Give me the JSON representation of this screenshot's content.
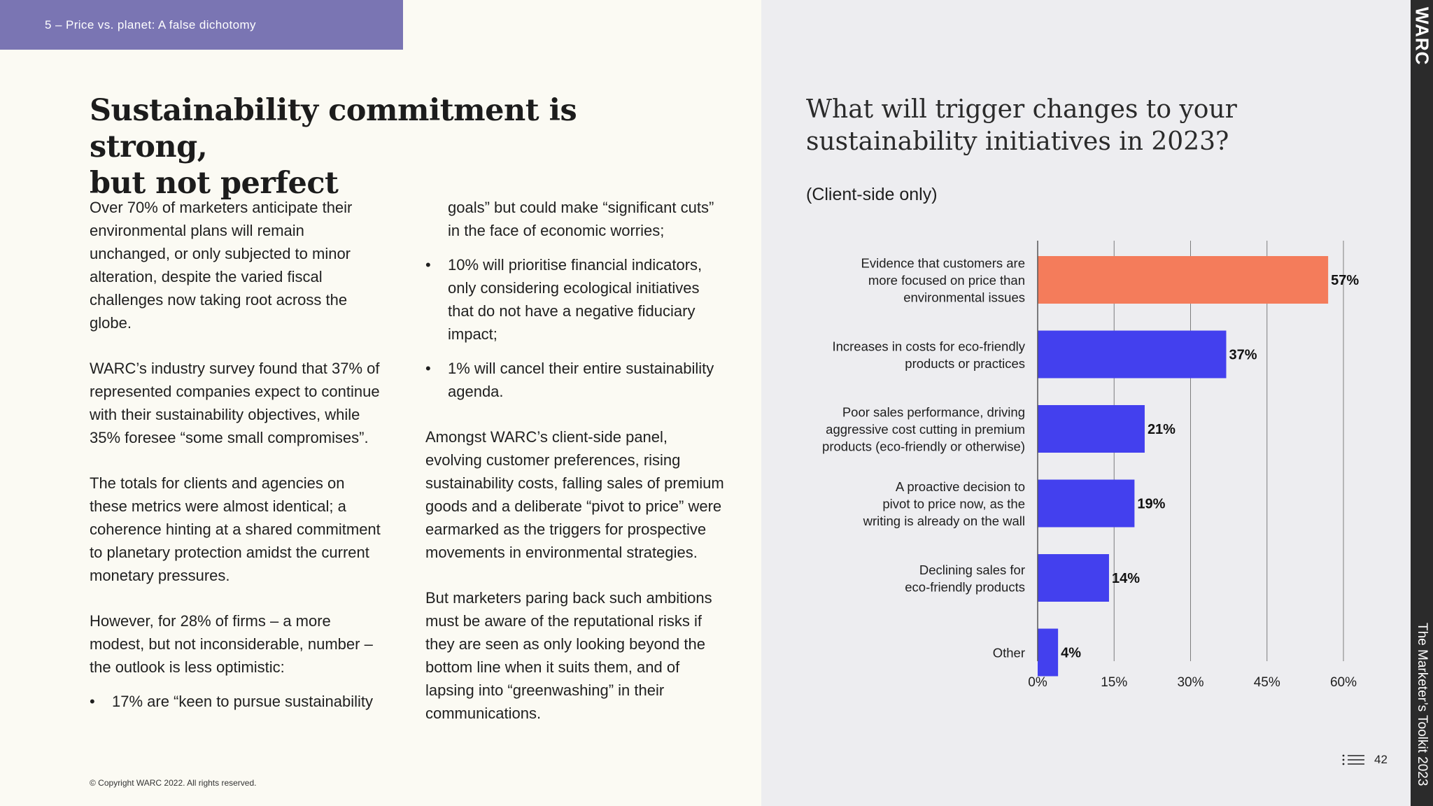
{
  "section_tab": "5 – Price vs. planet: A false dichotomy",
  "headline": {
    "line1": "Sustainability commitment is strong,",
    "line2": "but not perfect"
  },
  "body": {
    "col1_p1": "Over 70% of marketers anticipate their environmental plans will remain unchanged, or only subjected to minor alteration, despite the varied fiscal challenges now taking root across the globe.",
    "col1_p2": "WARC’s industry survey found that 37% of represented companies expect to continue with their sustainability objectives, while 35% foresee “some small compromises”.",
    "col1_p3": "The totals for clients and agencies on these metrics were almost identical; a coherence hinting at a shared commitment to planetary protection amidst the current monetary pressures.",
    "col1_p4": "However, for 28% of firms – a more modest, but not inconsiderable, number – the outlook is less optimistic:",
    "bullet_marker": "•",
    "bullet1_start": "17% are “keen to pursue sustainability",
    "bullet1_cont": "goals” but could make “significant cuts” in the face of economic worries;",
    "bullet2": "10% will prioritise financial indicators, only considering ecological initiatives that do not have a negative fiduciary impact;",
    "bullet3": "1% will cancel their entire sustainability agenda.",
    "col2_p1": "Amongst WARC’s client-side panel, evolving customer preferences, rising sustainability costs, falling sales of premium goods and a deliberate “pivot to price” were earmarked as the triggers for prospective movements in environmental strategies.",
    "col2_p2": "But marketers paring back such ambitions must be aware of the reputational risks if they are seen as only looking beyond the bottom line when it suits them, and of lapsing into “greenwashing” in their communications."
  },
  "copyright": "© Copyright WARC 2022. All rights reserved.",
  "chart_heading": {
    "line1": "What will trigger changes to your",
    "line2": "sustainability initiatives in 2023?"
  },
  "chart_subheading": "(Client-side only)",
  "chart_data": {
    "type": "bar",
    "orientation": "horizontal",
    "title": "What will trigger changes to your sustainability initiatives in 2023?",
    "subtitle": "(Client-side only)",
    "categories": [
      [
        "Evidence that customers are",
        "more focused on price than",
        "environmental issues"
      ],
      [
        "Increases in costs for eco-friendly",
        "products or practices"
      ],
      [
        "Poor sales performance, driving",
        "aggressive cost cutting in premium",
        "products (eco-friendly or otherwise)"
      ],
      [
        "A proactive decision to",
        "pivot to price now, as the",
        "writing is already on the wall"
      ],
      [
        "Declining sales for",
        "eco-friendly products"
      ],
      [
        "Other"
      ]
    ],
    "values": [
      57,
      37,
      21,
      19,
      14,
      4
    ],
    "value_labels": [
      "57%",
      "37%",
      "21%",
      "19%",
      "14%",
      "4%"
    ],
    "colors": [
      "#f47c5b",
      "#4340ee",
      "#4340ee",
      "#4340ee",
      "#4340ee",
      "#4340ee"
    ],
    "xlim": [
      0,
      60
    ],
    "xticks": [
      0,
      15,
      30,
      45,
      60
    ],
    "xtick_labels": [
      "0%",
      "15%",
      "30%",
      "45%",
      "60%"
    ],
    "grid": true
  },
  "sidebar": {
    "wordmark": "WARC",
    "publication": "The Marketer’s Toolkit 2023"
  },
  "page_number": "42",
  "icons": {
    "menu": "menu-list-icon"
  },
  "colors": {
    "section_tab_bg": "#7a75b3",
    "highlight_bar": "#f47c5b",
    "bar": "#4340ee",
    "sidebar": "#2b2b2b"
  }
}
